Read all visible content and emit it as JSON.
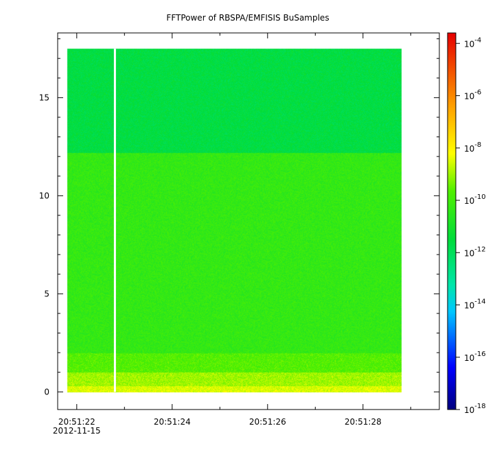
{
  "chart_data": {
    "type": "heatmap",
    "title": "FFTPower of RBSPA/EMFISIS  BuSamples",
    "x_axis": {
      "range_seconds": [
        21.6,
        29.6
      ],
      "ticks": [
        {
          "t": 22,
          "label": "20:51:22",
          "sublabel": "2012-11-15"
        },
        {
          "t": 24,
          "label": "20:51:24",
          "sublabel": ""
        },
        {
          "t": 26,
          "label": "20:51:26",
          "sublabel": ""
        },
        {
          "t": 28,
          "label": "20:51:28",
          "sublabel": ""
        }
      ],
      "minor_ticks": [
        23,
        25,
        27,
        29
      ]
    },
    "y_axis": {
      "range": [
        -0.9,
        18.3
      ],
      "ticks": [
        0,
        5,
        10,
        15
      ],
      "minor_ticks": [
        1,
        2,
        3,
        4,
        6,
        7,
        8,
        9,
        11,
        12,
        13,
        14,
        16,
        17,
        18
      ]
    },
    "colorbar": {
      "scale": "log",
      "range_exp": [
        -18,
        -3.6
      ],
      "ticks": [
        {
          "exp": -18,
          "base": "10",
          "sup": "-18"
        },
        {
          "exp": -16,
          "base": "10",
          "sup": "-16"
        },
        {
          "exp": -14,
          "base": "10",
          "sup": "-14"
        },
        {
          "exp": -12,
          "base": "10",
          "sup": "-12"
        },
        {
          "exp": -10,
          "base": "10",
          "sup": "-10"
        },
        {
          "exp": -8,
          "base": "10",
          "sup": "-8"
        },
        {
          "exp": -6,
          "base": "10",
          "sup": "-6"
        },
        {
          "exp": -4,
          "base": "10",
          "sup": "-4"
        }
      ]
    },
    "data_extent": {
      "x_start": 21.8,
      "x_end": 28.8,
      "y_max": 17.5
    },
    "gap_at_t": 22.8,
    "bands": [
      {
        "y_from": 0.0,
        "y_to": 0.3,
        "log_power": -8.5
      },
      {
        "y_from": 0.3,
        "y_to": 1.0,
        "log_power": -9.0
      },
      {
        "y_from": 1.0,
        "y_to": 2.0,
        "log_power": -9.7
      },
      {
        "y_from": 2.0,
        "y_to": 12.2,
        "log_power": -10.3
      },
      {
        "y_from": 12.2,
        "y_to": 17.5,
        "log_power": -11.6
      }
    ]
  }
}
